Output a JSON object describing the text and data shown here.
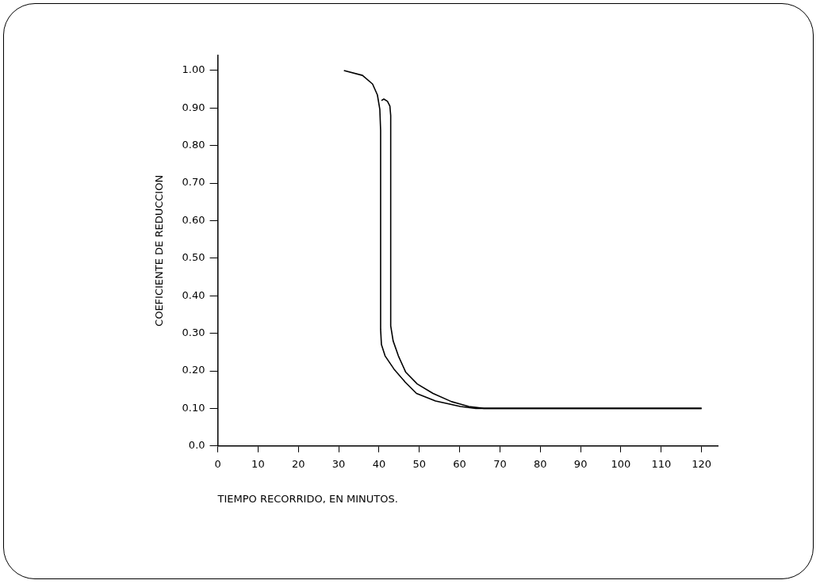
{
  "chart_data": {
    "type": "line",
    "xlabel": "TIEMPO RECORRIDO, EN MINUTOS.",
    "ylabel": "COEFICIENTE DE REDUCCION",
    "xlim": [
      0,
      124
    ],
    "ylim": [
      0,
      1.04
    ],
    "xticks": [
      0,
      10,
      20,
      30,
      40,
      50,
      60,
      70,
      80,
      90,
      100,
      110,
      120
    ],
    "yticks": [
      {
        "value": 0,
        "label": "0.0"
      },
      {
        "value": 0.1,
        "label": "0.10"
      },
      {
        "value": 0.2,
        "label": "0.20"
      },
      {
        "value": 0.3,
        "label": "0.30"
      },
      {
        "value": 0.4,
        "label": "0.40"
      },
      {
        "value": 0.5,
        "label": "0.50"
      },
      {
        "value": 0.6,
        "label": "0.60"
      },
      {
        "value": 0.7,
        "label": "0.70"
      },
      {
        "value": 0.8,
        "label": "0.80"
      },
      {
        "value": 0.9,
        "label": "0.90"
      },
      {
        "value": 1,
        "label": "1.00"
      }
    ],
    "grid": false,
    "legend": false,
    "series": [
      {
        "color": "#000000",
        "x": [
          31.3,
          35.9,
          38.4,
          39.6,
          40.2,
          40.4,
          40.4,
          40.6,
          41.5,
          43.7,
          46.5,
          49.3,
          54,
          60.2,
          64,
          120
        ],
        "values": [
          1,
          0.987,
          0.964,
          0.935,
          0.897,
          0.84,
          0.31,
          0.27,
          0.24,
          0.205,
          0.17,
          0.14,
          0.12,
          0.105,
          0.1,
          0.1
        ]
      },
      {
        "color": "#000000",
        "x": [
          40.6,
          41.2,
          42.1,
          42.7,
          42.9,
          42.9,
          43.5,
          44.8,
          46.6,
          49.5,
          53.4,
          58,
          62.3,
          66,
          120
        ],
        "values": [
          0.92,
          0.924,
          0.918,
          0.905,
          0.88,
          0.32,
          0.28,
          0.24,
          0.197,
          0.165,
          0.14,
          0.118,
          0.105,
          0.1,
          0.1
        ]
      }
    ]
  }
}
